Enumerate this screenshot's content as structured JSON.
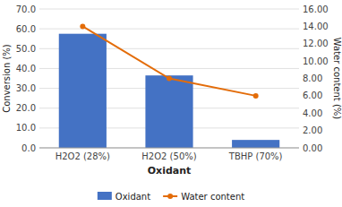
{
  "chart_data": {
    "type": "bar",
    "categories": [
      "H2O2 (28%)",
      "H2O2 (50%)",
      "TBHP (70%)"
    ],
    "xlabel": "Oxidant",
    "ylabel": "Conversion (%)",
    "y2label": "Water content (%)",
    "series": [
      {
        "name": "Oxidant",
        "type": "bar",
        "color": "#4472C4",
        "values": [
          57.5,
          36.5,
          4.0
        ]
      },
      {
        "name": "Water content",
        "type": "line",
        "color": "#E36C09",
        "marker": "circle",
        "line_style": "solid",
        "axis": "y2",
        "values": [
          14.0,
          8.0,
          6.0
        ]
      }
    ],
    "ylim": [
      0.0,
      70.0
    ],
    "yticks": [
      {
        "value": 0,
        "label": "0.0"
      },
      {
        "value": 10,
        "label": "10.0"
      },
      {
        "value": 20,
        "label": "20.0"
      },
      {
        "value": 30,
        "label": "30.0"
      },
      {
        "value": 40,
        "label": "40.0"
      },
      {
        "value": 50,
        "label": "50.0"
      },
      {
        "value": 60,
        "label": "60.0"
      },
      {
        "value": 70,
        "label": "70.0"
      }
    ],
    "y2lim": [
      0.0,
      16.0
    ],
    "y2ticks": [
      {
        "value": 0,
        "label": "0.00"
      },
      {
        "value": 2,
        "label": "2.00"
      },
      {
        "value": 4,
        "label": "4.00"
      },
      {
        "value": 6,
        "label": "6.00"
      },
      {
        "value": 8,
        "label": "8.00"
      },
      {
        "value": 10,
        "label": "10.00"
      },
      {
        "value": 12,
        "label": "12.00"
      },
      {
        "value": 14,
        "label": "14.00"
      },
      {
        "value": 16,
        "label": "16.00"
      }
    ],
    "grid": true,
    "legend": "bottom"
  }
}
